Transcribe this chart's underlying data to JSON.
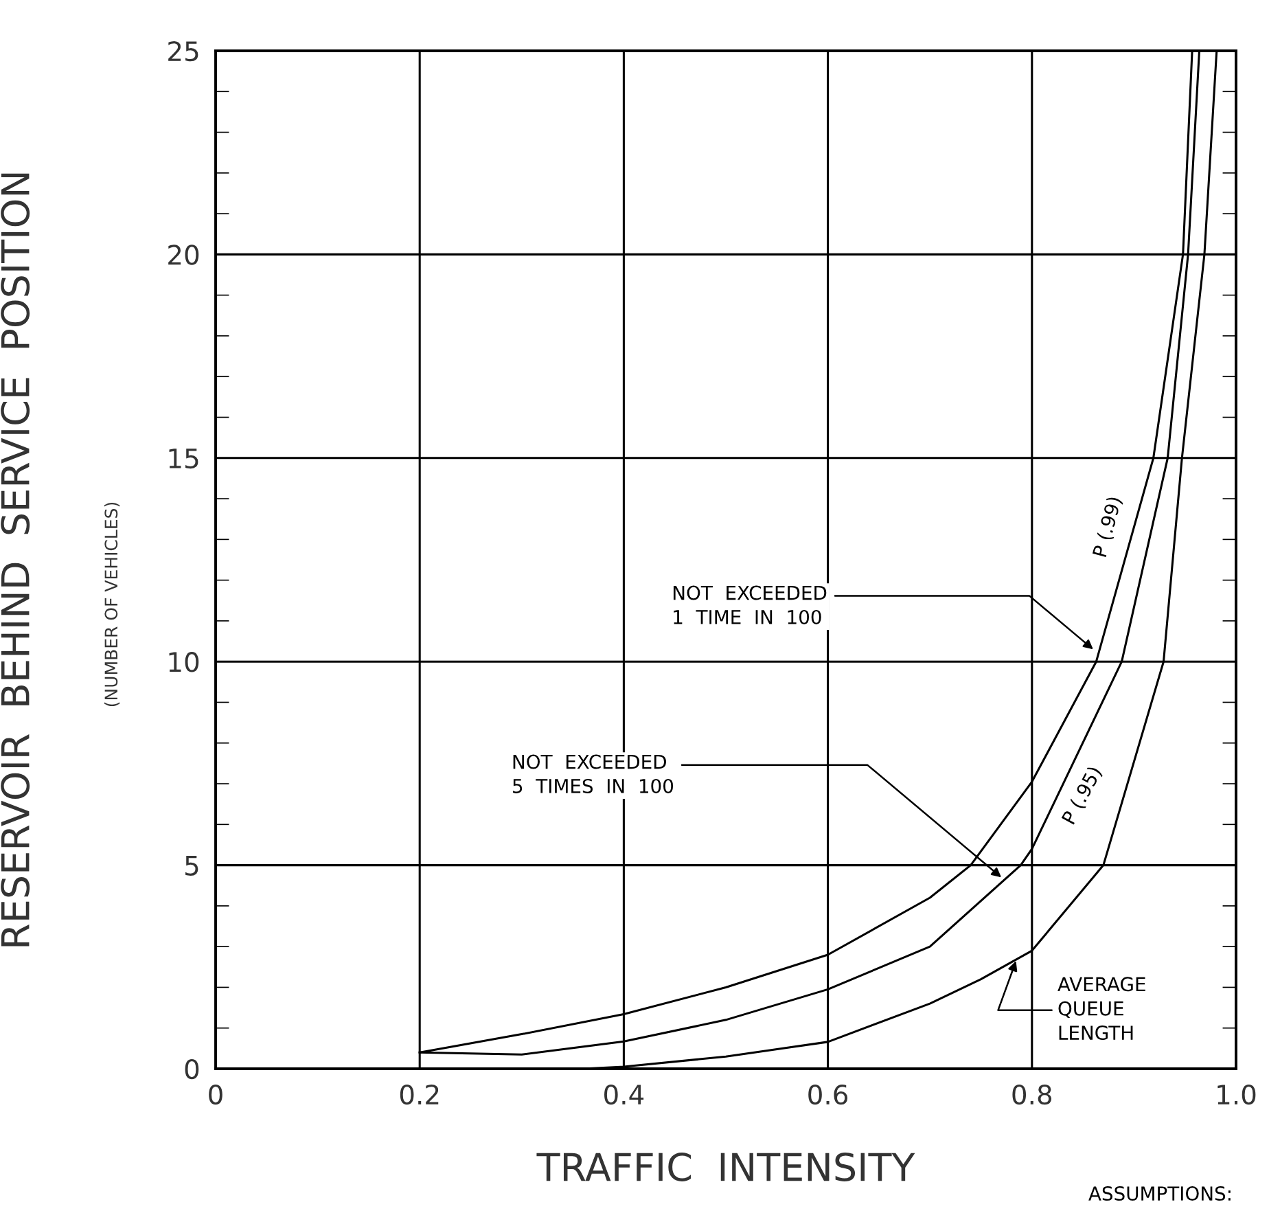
{
  "chart_data": {
    "type": "line",
    "xlabel": "TRAFFIC  INTENSITY",
    "ylabel": "RESERVOIR  BEHIND  SERVICE  POSITION",
    "subtitle": "(NUMBER OF VEHICLES)",
    "xlim": [
      0,
      1.0
    ],
    "ylim": [
      0,
      25
    ],
    "xticks": [
      0,
      0.2,
      0.4,
      0.6,
      0.8,
      {
        "value": 1.0,
        "label": "1.0"
      }
    ],
    "yticks": [
      0,
      5,
      10,
      15,
      20,
      25
    ],
    "grid": true,
    "marker": "none",
    "line_style": "solid",
    "series": [
      {
        "name": "P (.99)",
        "color": "#000000",
        "x": [
          0.2,
          0.3,
          0.4,
          0.5,
          0.6,
          0.7,
          0.74,
          0.8,
          0.863,
          0.919,
          0.948,
          0.957
        ],
        "values": [
          0.4,
          0.85,
          1.34,
          2.0,
          2.8,
          4.2,
          5,
          7.05,
          10,
          15,
          20,
          25
        ]
      },
      {
        "name": "P (.95)",
        "color": "#000000",
        "x": [
          0.2,
          0.3,
          0.4,
          0.5,
          0.6,
          0.7,
          0.789,
          0.8,
          0.888,
          0.933,
          0.953,
          0.964
        ],
        "values": [
          0.4,
          0.35,
          0.67,
          1.2,
          1.95,
          3.0,
          5,
          5.4,
          10,
          15,
          20,
          25
        ]
      },
      {
        "name": "AVERAGE\nQUEUE\nLENGTH",
        "color": "#000000",
        "x": [
          0.36,
          0.4,
          0.5,
          0.6,
          0.7,
          0.75,
          0.8,
          0.87,
          0.929,
          0.947,
          0.969,
          0.981
        ],
        "values": [
          0,
          0.05,
          0.3,
          0.66,
          1.6,
          2.2,
          2.9,
          5,
          10,
          15,
          20,
          25
        ]
      }
    ],
    "annotations": [
      {
        "text": "NOT  EXCEEDED\n1  TIME  IN  100",
        "x": 0.86,
        "y": 10.3
      },
      {
        "text": "NOT  EXCEEDED\n5  TIMES  IN  100",
        "x": 0.77,
        "y": 4.7
      },
      "ASSUMPTIONS:"
    ]
  }
}
